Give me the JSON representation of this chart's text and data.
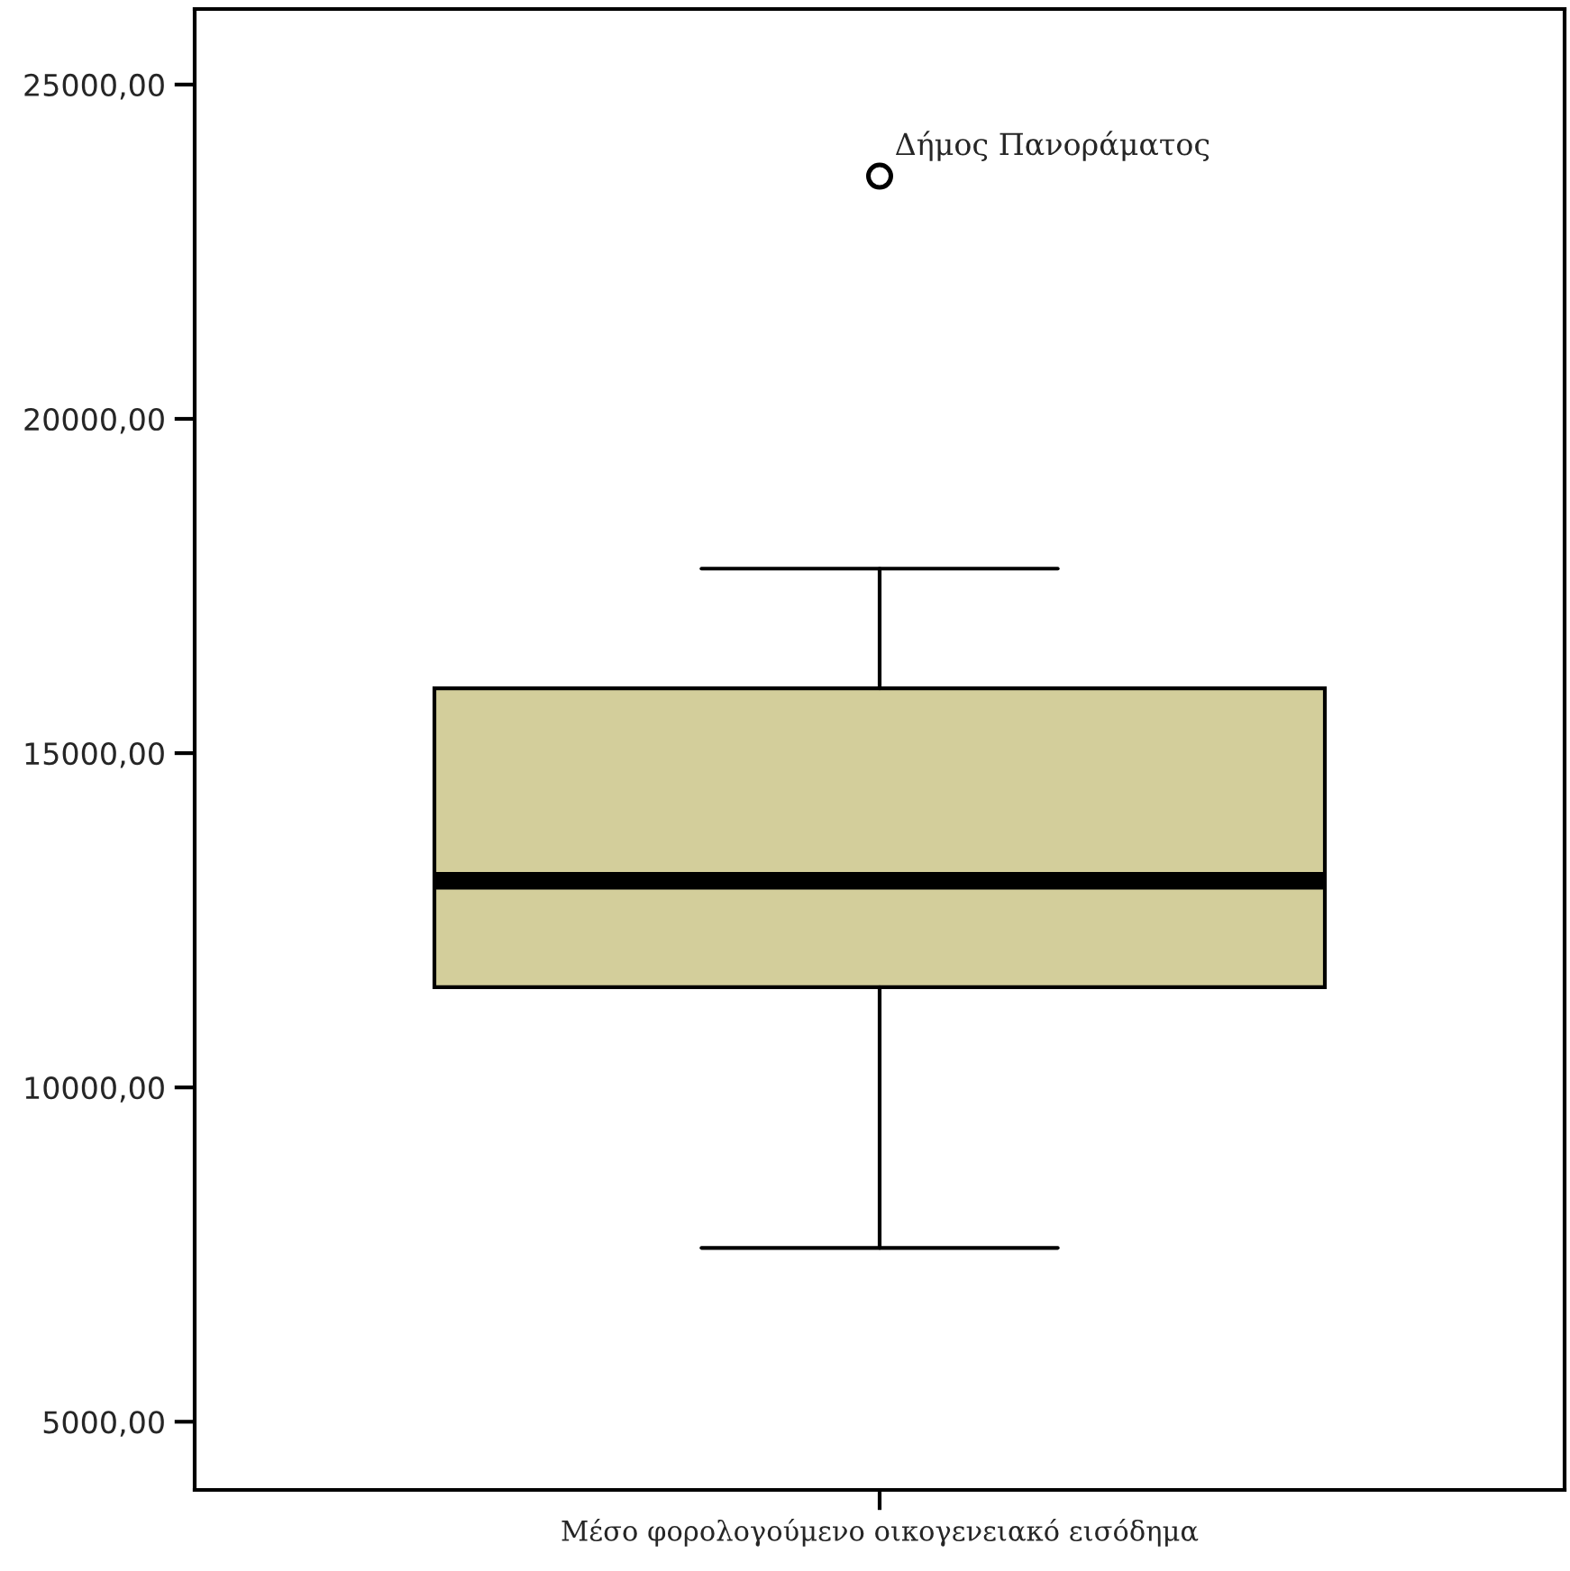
{
  "chart_data": {
    "type": "box",
    "categories": [
      "Μέσο φορολογούμενο οικογενειακό εισόδημα"
    ],
    "boxes": [
      {
        "low": 7600,
        "q1": 11500,
        "median": 13090,
        "q3": 15970,
        "high": 17760,
        "outliers": [
          23630
        ]
      }
    ],
    "color": "#d3ce9b",
    "ylim": [
      3980,
      26130
    ],
    "yticks": [
      {
        "value": 5000,
        "label": "5000,00"
      },
      {
        "value": 10000,
        "label": "10000,00"
      },
      {
        "value": 15000,
        "label": "15000,00"
      },
      {
        "value": 20000,
        "label": "20000,00"
      },
      {
        "value": 25000,
        "label": "25000,00"
      }
    ],
    "annotations": [
      "Δήμος Πανοράματος"
    ],
    "grid": false
  }
}
